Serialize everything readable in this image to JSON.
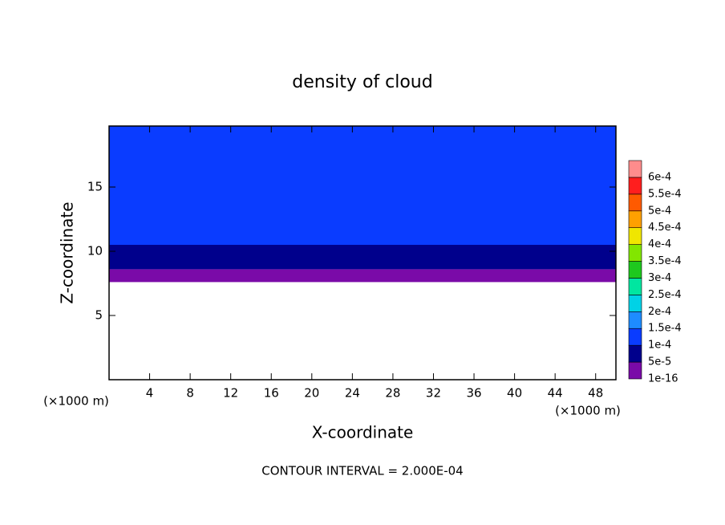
{
  "chart_data": {
    "type": "contour",
    "title": "density of cloud",
    "xlabel": "X-coordinate",
    "ylabel": "Z-coordinate",
    "x_unit": "(×1000 m)",
    "footnote": "CONTOUR INTERVAL = 2.000E-04",
    "xlim": [
      0,
      50
    ],
    "ylim": [
      0,
      19.75
    ],
    "xticks": [
      4,
      8,
      12,
      16,
      20,
      24,
      28,
      32,
      36,
      40,
      44,
      48
    ],
    "yticks": [
      5,
      10,
      15
    ],
    "colorbar": {
      "levels": [
        {
          "value": 1e-16,
          "label": "1e-16"
        },
        {
          "value": 5e-05,
          "label": "5e-5"
        },
        {
          "value": 0.0001,
          "label": "1e-4"
        },
        {
          "value": 0.00015,
          "label": "1.5e-4"
        },
        {
          "value": 0.0002,
          "label": "2e-4"
        },
        {
          "value": 0.00025,
          "label": "2.5e-4"
        },
        {
          "value": 0.0003,
          "label": "3e-4"
        },
        {
          "value": 0.00035,
          "label": "3.5e-4"
        },
        {
          "value": 0.0004,
          "label": "4e-4"
        },
        {
          "value": 0.00045,
          "label": "4.5e-4"
        },
        {
          "value": 0.0005,
          "label": "5e-4"
        },
        {
          "value": 0.00055,
          "label": "5.5e-4"
        },
        {
          "value": 0.0006,
          "label": "6e-4"
        }
      ],
      "colors": [
        "#7a0aa8",
        "#00008c",
        "#0a3cff",
        "#1e8cff",
        "#00d2e6",
        "#00e6a0",
        "#1ec81e",
        "#82e600",
        "#f0e600",
        "#ffa000",
        "#ff5a00",
        "#ff1e1e",
        "#ff8c8c"
      ]
    },
    "profile": {
      "z": [
        7.6,
        8.6,
        10.5,
        19.75
      ],
      "values": [
        3e-05,
        7e-05,
        0.00012
      ]
    }
  }
}
